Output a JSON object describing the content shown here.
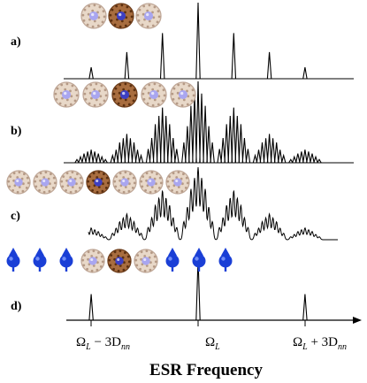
{
  "chart_data": {
    "type": "line",
    "xlabel": "ESR Frequency",
    "xticks": [
      {
        "x": -3,
        "label_main": "Ω",
        "label_sub": "L",
        "label_rest": " − 3D",
        "label_sub2": "nn"
      },
      {
        "x": 0,
        "label_main": "Ω",
        "label_sub": "L",
        "label_rest": "",
        "label_sub2": ""
      },
      {
        "x": 3,
        "label_main": "Ω",
        "label_sub": "L",
        "label_rest": " + 3D",
        "label_sub2": "nn"
      }
    ],
    "xlim": [
      -4.1,
      4.2
    ],
    "panels": [
      {
        "label": "a)",
        "molecules": [
          "empty",
          "filled",
          "empty"
        ],
        "peaks": [
          {
            "x": -3,
            "h": 0.15
          },
          {
            "x": -2,
            "h": 0.35
          },
          {
            "x": -1,
            "h": 0.6
          },
          {
            "x": 0,
            "h": 1.0
          },
          {
            "x": 1,
            "h": 0.6
          },
          {
            "x": 2,
            "h": 0.35
          },
          {
            "x": 3,
            "h": 0.15
          }
        ]
      },
      {
        "label": "b)",
        "molecules": [
          "empty",
          "empty",
          "filled",
          "empty",
          "empty"
        ],
        "clusters": [
          {
            "c": -3,
            "a": 0.1
          },
          {
            "c": -2,
            "a": 0.22
          },
          {
            "c": -1,
            "a": 0.42
          },
          {
            "c": 0,
            "a": 0.62
          },
          {
            "c": 1,
            "a": 0.42
          },
          {
            "c": 2,
            "a": 0.22
          },
          {
            "c": 3,
            "a": 0.1
          }
        ],
        "subpeaks": [
          {
            "d": -0.4,
            "w": 0.25
          },
          {
            "d": -0.3,
            "w": 0.45
          },
          {
            "d": -0.2,
            "w": 0.7
          },
          {
            "d": -0.1,
            "w": 0.85
          },
          {
            "d": 0.0,
            "w": 1.0
          },
          {
            "d": 0.1,
            "w": 0.85
          },
          {
            "d": 0.2,
            "w": 0.7
          },
          {
            "d": 0.3,
            "w": 0.45
          },
          {
            "d": 0.4,
            "w": 0.25
          }
        ]
      },
      {
        "label": "c)",
        "molecules": [
          "empty",
          "empty",
          "empty",
          "filled",
          "empty",
          "empty",
          "empty"
        ],
        "clusters": [
          {
            "c": -3,
            "a": 0.1
          },
          {
            "c": -2,
            "a": 0.22
          },
          {
            "c": -1,
            "a": 0.42
          },
          {
            "c": 0,
            "a": 0.62
          },
          {
            "c": 1,
            "a": 0.42
          },
          {
            "c": 2,
            "a": 0.22
          },
          {
            "c": 3,
            "a": 0.1
          }
        ],
        "subpeaks": [
          {
            "d": -0.4,
            "w": 0.25
          },
          {
            "d": -0.3,
            "w": 0.45
          },
          {
            "d": -0.2,
            "w": 0.7
          },
          {
            "d": -0.1,
            "w": 0.85
          },
          {
            "d": 0.0,
            "w": 1.0
          },
          {
            "d": 0.1,
            "w": 0.85
          },
          {
            "d": 0.2,
            "w": 0.7
          },
          {
            "d": 0.3,
            "w": 0.45
          },
          {
            "d": 0.4,
            "w": 0.25
          }
        ]
      },
      {
        "label": "d)",
        "molecules": [
          "spin",
          "spin",
          "spin",
          "empty",
          "filled",
          "empty",
          "spin",
          "spin",
          "spin"
        ],
        "peaks": [
          {
            "x": -3,
            "h": 0.42
          },
          {
            "x": 0,
            "h": 1.0
          },
          {
            "x": 3,
            "h": 0.42
          }
        ]
      }
    ],
    "colors": {
      "cage": "#e8d8c8",
      "cage_stroke": "#c0a898",
      "filled_cage": "#a86d3f",
      "filled_cage_stroke": "#6e3e1c",
      "core": "#a9a6f0",
      "filled_core": "#3d3fc2",
      "spin": "#1a3fd6",
      "line": "#000000"
    }
  }
}
